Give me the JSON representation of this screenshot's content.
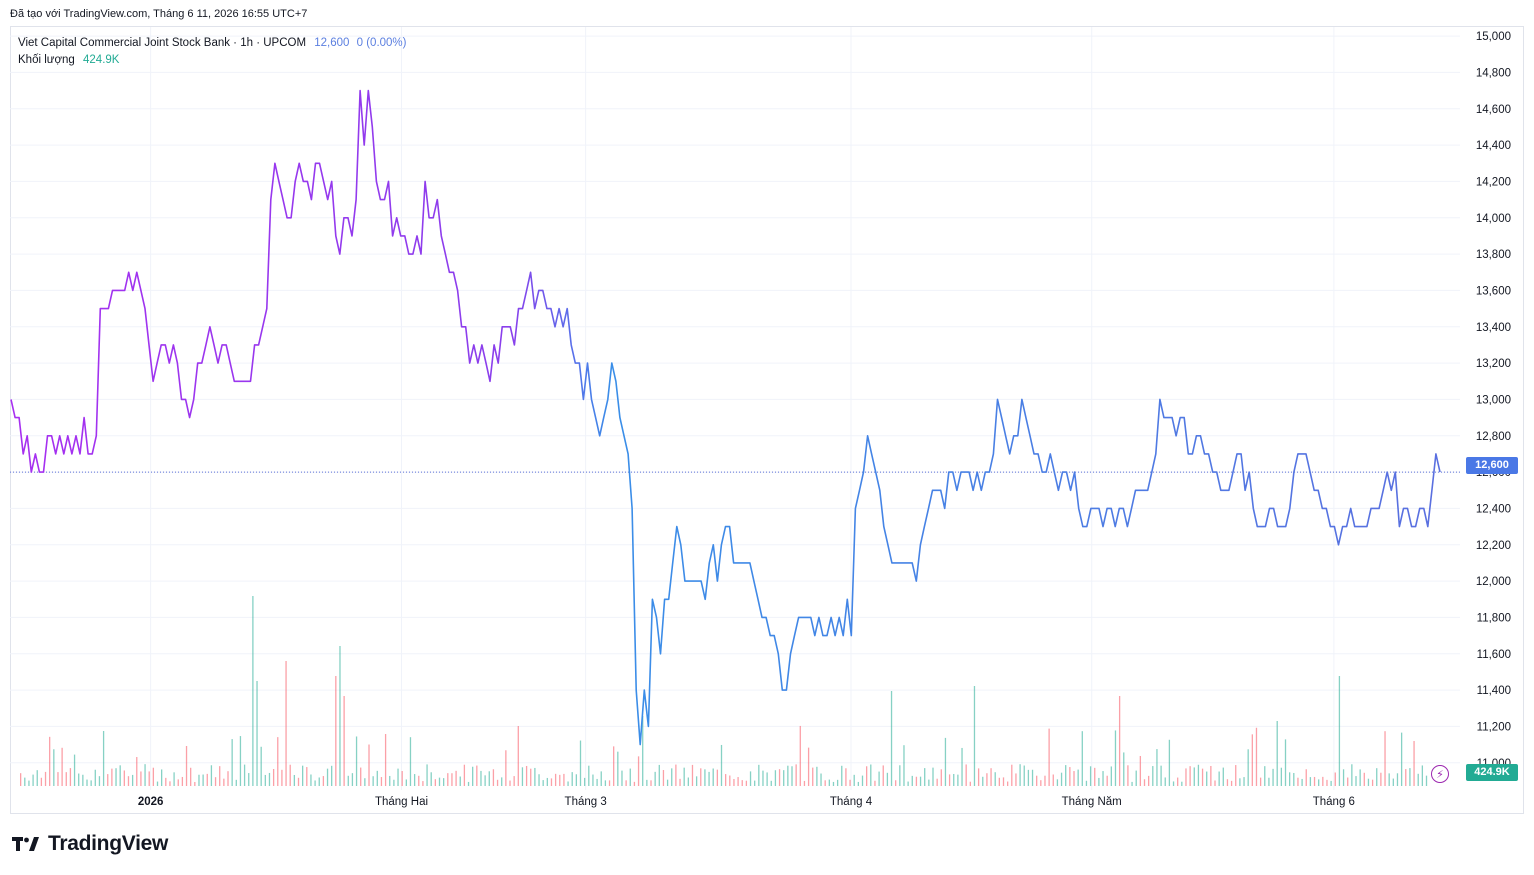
{
  "header": {
    "created_with": "Đã tạo với TradingView.com, Tháng 6 11, 2026 16:55 UTC+7"
  },
  "legend": {
    "symbol": "Viet Capital Commercial Joint Stock Bank · 1h · UPCOM",
    "price": "12,600",
    "change": "0 (0.00%)",
    "volume_label": "Khối lượng",
    "volume_value": "424.9K"
  },
  "price_tag": "12,600",
  "volume_tag": "424.9K",
  "brand": {
    "name": "TradingView"
  },
  "colors": {
    "line_start": "#a72ff0",
    "line_end": "#3a8ee8",
    "grid": "#f0f3fa",
    "vol_up": "#22ab94",
    "vol_down": "#f7525f",
    "last_price_line": "#5b6fd6"
  },
  "icons": {
    "flash": "lightning-icon",
    "logo": "tradingview-logo-icon"
  },
  "chart_data": {
    "type": "line",
    "title": "",
    "xlabel": "",
    "ylabel": "",
    "ylim": [
      10850,
      15050
    ],
    "y_ticks": [
      11000,
      11200,
      11400,
      11600,
      11800,
      12000,
      12200,
      12400,
      12600,
      12800,
      13000,
      13200,
      13400,
      13600,
      13800,
      14000,
      14200,
      14400,
      14600,
      14800,
      15000
    ],
    "y_tick_labels": [
      "11,000",
      "11,200",
      "11,400",
      "11,600",
      "11,800",
      "12,000",
      "12,200",
      "12,400",
      "12,600",
      "12,800",
      "13,000",
      "13,200",
      "13,400",
      "13,600",
      "13,800",
      "14,000",
      "14,200",
      "14,400",
      "14,600",
      "14,800",
      "15,000"
    ],
    "x_ticks": [
      {
        "label": "2026",
        "t": 0.097
      },
      {
        "label": "Tháng Hai",
        "t": 0.27
      },
      {
        "label": "Tháng 3",
        "t": 0.397
      },
      {
        "label": "Tháng 4",
        "t": 0.58
      },
      {
        "label": "Tháng Năm",
        "t": 0.746
      },
      {
        "label": "Tháng 6",
        "t": 0.913
      }
    ],
    "series": [
      {
        "values": [
          13000,
          12900,
          12900,
          12700,
          12800,
          12600,
          12700,
          12600,
          12600,
          12800,
          12800,
          12700,
          12800,
          12700,
          12800,
          12700,
          12800,
          12700,
          12900,
          12700,
          12700,
          12800,
          13500,
          13500,
          13500,
          13600,
          13600,
          13600,
          13600,
          13700,
          13600,
          13700,
          13600,
          13500,
          13300,
          13100,
          13200,
          13300,
          13300,
          13200,
          13300,
          13200,
          13000,
          13000,
          12900,
          13000,
          13200,
          13200,
          13300,
          13400,
          13300,
          13200,
          13300,
          13300,
          13200,
          13100,
          13100,
          13100,
          13100,
          13100,
          13300,
          13300,
          13400,
          13500,
          14100,
          14300,
          14200,
          14100,
          14000,
          14000,
          14200,
          14300,
          14200,
          14200,
          14100,
          14300,
          14300,
          14200,
          14100,
          14200,
          13900,
          13800,
          14000,
          14000,
          13900,
          14100,
          14700,
          14400,
          14700,
          14500,
          14200,
          14100,
          14100,
          14200,
          13900,
          14000,
          13900,
          13900,
          13800,
          13800,
          13900,
          13800,
          14200,
          14000,
          14000,
          14100,
          13900,
          13800,
          13700,
          13700,
          13600,
          13400,
          13400,
          13200,
          13300,
          13200,
          13300,
          13200,
          13100,
          13300,
          13200,
          13400,
          13400,
          13400,
          13300,
          13500,
          13500,
          13600,
          13700,
          13500,
          13600,
          13600,
          13500,
          13500,
          13400,
          13500,
          13400,
          13500,
          13300,
          13200,
          13200,
          13000,
          13200,
          13000,
          12900,
          12800,
          12900,
          13000,
          13200,
          13100,
          12900,
          12800,
          12700,
          12400,
          11400,
          11100,
          11400,
          11200,
          11900,
          11800,
          11600,
          11900,
          11900,
          12100,
          12300,
          12200,
          12000,
          12000,
          12000,
          12000,
          12000,
          11900,
          12100,
          12200,
          12000,
          12200,
          12300,
          12300,
          12100,
          12100,
          12100,
          12100,
          12100,
          12000,
          11900,
          11800,
          11800,
          11700,
          11700,
          11600,
          11400,
          11400,
          11600,
          11700,
          11800,
          11800,
          11800,
          11800,
          11700,
          11800,
          11700,
          11700,
          11800,
          11700,
          11800,
          11700,
          11900,
          11700,
          12400,
          12500,
          12600,
          12800,
          12700,
          12600,
          12500,
          12300,
          12200,
          12100,
          12100,
          12100,
          12100,
          12100,
          12100,
          12000,
          12200,
          12300,
          12400,
          12500,
          12500,
          12500,
          12400,
          12600,
          12600,
          12500,
          12600,
          12600,
          12600,
          12500,
          12600,
          12500,
          12600,
          12600,
          12700,
          13000,
          12900,
          12800,
          12700,
          12800,
          12800,
          13000,
          12900,
          12800,
          12700,
          12700,
          12600,
          12600,
          12700,
          12600,
          12500,
          12600,
          12600,
          12500,
          12600,
          12400,
          12300,
          12300,
          12400,
          12400,
          12400,
          12300,
          12400,
          12400,
          12300,
          12400,
          12400,
          12300,
          12400,
          12500,
          12500,
          12500,
          12500,
          12600,
          12700,
          13000,
          12900,
          12900,
          12900,
          12800,
          12900,
          12900,
          12700,
          12700,
          12800,
          12800,
          12700,
          12700,
          12600,
          12600,
          12500,
          12500,
          12500,
          12600,
          12700,
          12700,
          12500,
          12600,
          12400,
          12300,
          12300,
          12300,
          12400,
          12400,
          12300,
          12300,
          12300,
          12400,
          12600,
          12700,
          12700,
          12700,
          12600,
          12500,
          12500,
          12400,
          12400,
          12300,
          12300,
          12200,
          12300,
          12300,
          12400,
          12300,
          12300,
          12300,
          12300,
          12400,
          12400,
          12400,
          12500,
          12600,
          12500,
          12600,
          12300,
          12400,
          12400,
          12300,
          12300,
          12400,
          12400,
          12300,
          12500,
          12700,
          12600
        ],
        "color_start": "#a72ff0",
        "color_end": "#3a8ee8"
      }
    ],
    "last_price": 12600
  }
}
